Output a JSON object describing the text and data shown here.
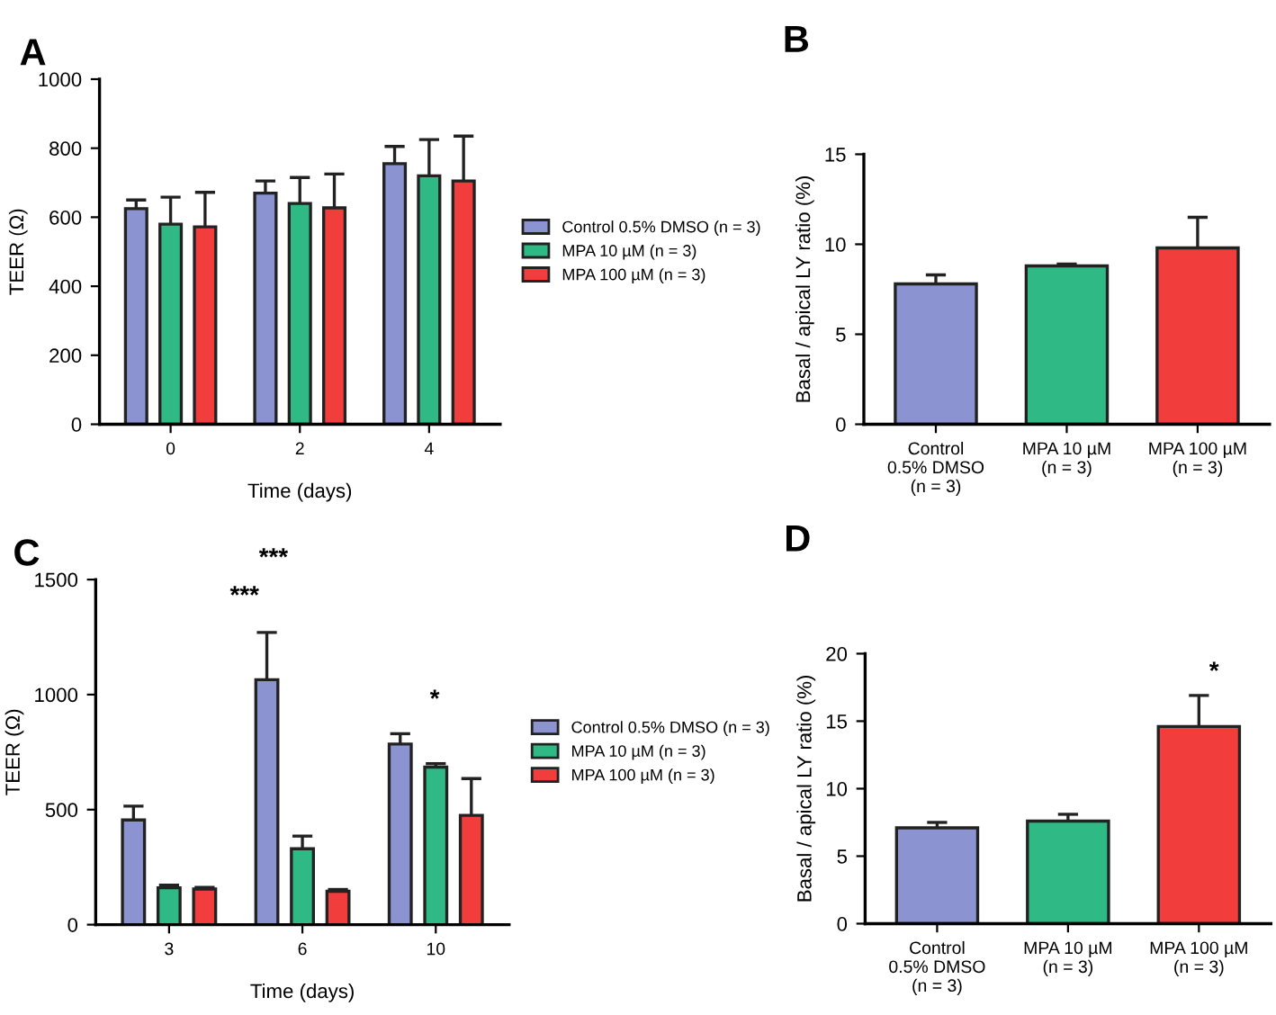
{
  "chart_data": [
    {
      "type": "bar",
      "title": "A",
      "xlabel": "Time (days)",
      "ylabel": "TEER (Ω)",
      "categories": [
        "0",
        "2",
        "4"
      ],
      "ylim": [
        0,
        1000
      ],
      "yticks": [
        0,
        200,
        400,
        600,
        800,
        1000
      ],
      "grid": false,
      "legend": "right",
      "series": [
        {
          "name": "Control 0.5% DMSO (n = 3)",
          "color": "#8b93d0",
          "values": [
            625,
            670,
            755
          ],
          "errors": [
            25,
            35,
            50
          ]
        },
        {
          "name": "MPA 10 µM (n = 3)",
          "color": "#2fb985",
          "values": [
            580,
            640,
            720
          ],
          "errors": [
            78,
            75,
            105
          ]
        },
        {
          "name": "MPA 100 µM (n = 3)",
          "color": "#f23d3d",
          "values": [
            572,
            627,
            705
          ],
          "errors": [
            100,
            98,
            130
          ]
        }
      ]
    },
    {
      "type": "bar",
      "title": "B",
      "ylabel": "Basal / apical LY ratio (%)",
      "categories": [
        "Control\n0.5% DMSO\n(n = 3)",
        "MPA 10 µM\n(n = 3)",
        "MPA 100 µM\n(n = 3)"
      ],
      "values": [
        7.8,
        8.8,
        9.8
      ],
      "errors": [
        0.5,
        0.1,
        1.7
      ],
      "colors": [
        "#8b93d0",
        "#2fb985",
        "#f23d3d"
      ],
      "ylim": [
        0,
        15
      ],
      "yticks": [
        0,
        5,
        10,
        15
      ],
      "grid": false
    },
    {
      "type": "bar",
      "title": "C",
      "xlabel": "Time (days)",
      "ylabel": "TEER (Ω)",
      "categories": [
        "3",
        "6",
        "10"
      ],
      "ylim": [
        0,
        1500
      ],
      "yticks": [
        0,
        500,
        1000,
        1500
      ],
      "grid": false,
      "legend": "right",
      "series": [
        {
          "name": "Control 0.5% DMSO (n = 3)",
          "color": "#8b93d0",
          "values": [
            455,
            1065,
            785
          ],
          "errors": [
            60,
            205,
            45
          ]
        },
        {
          "name": "MPA 10 µM (n = 3)",
          "color": "#2fb985",
          "values": [
            160,
            330,
            685
          ],
          "errors": [
            12,
            55,
            15
          ]
        },
        {
          "name": "MPA 100 µM (n = 3)",
          "color": "#f23d3d",
          "values": [
            155,
            145,
            475
          ],
          "errors": [
            7,
            8,
            160
          ]
        }
      ],
      "annotations": [
        "***",
        "***",
        "*"
      ]
    },
    {
      "type": "bar",
      "title": "D",
      "ylabel": "Basal / apical LY ratio (%)",
      "categories": [
        "Control\n0.5% DMSO\n(n = 3)",
        "MPA 10 µM\n(n = 3)",
        "MPA 100 µM\n(n = 3)"
      ],
      "values": [
        7.1,
        7.6,
        14.6
      ],
      "errors": [
        0.4,
        0.5,
        2.3
      ],
      "colors": [
        "#8b93d0",
        "#2fb985",
        "#f23d3d"
      ],
      "ylim": [
        0,
        20
      ],
      "yticks": [
        0,
        5,
        10,
        15,
        20
      ],
      "grid": false,
      "annotations": [
        "*"
      ]
    }
  ]
}
